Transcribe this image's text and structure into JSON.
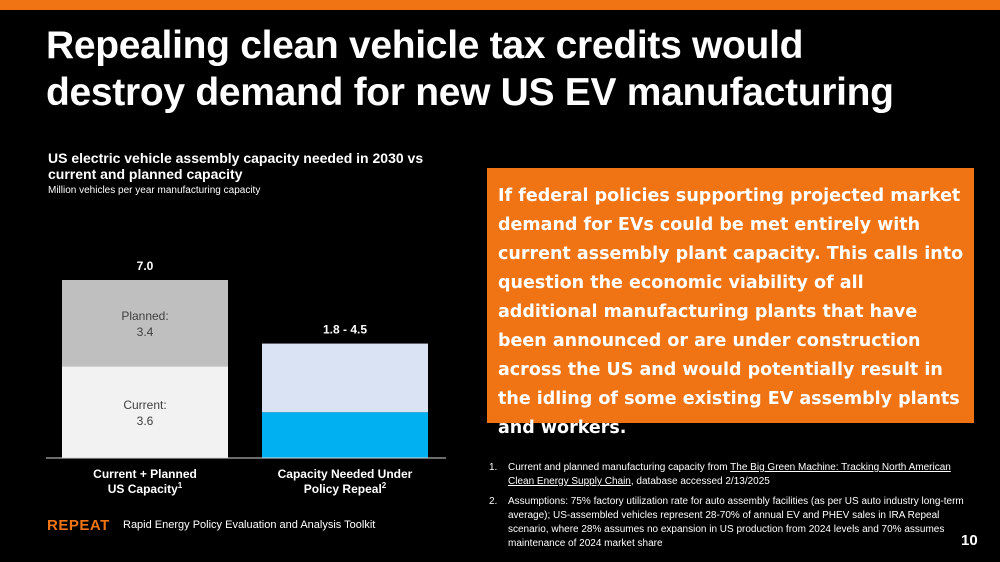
{
  "title": "Repealing clean vehicle tax credits would destroy demand for new US EV manufacturing",
  "chart_data": {
    "type": "bar",
    "stacked": true,
    "title": "US electric vehicle assembly capacity needed in 2030 vs current and planned capacity",
    "subtitle": "Million vehicles per year manufacturing capacity",
    "categories": [
      {
        "name": "Current + Planned US Capacity",
        "line1": "Current + Planned",
        "line2": "US Capacity",
        "footnote": "1"
      },
      {
        "name": "Capacity Needed Under Policy Repeal",
        "line1": "Capacity Needed Under",
        "line2": "Policy Repeal",
        "footnote": "2"
      }
    ],
    "series": [
      {
        "name": "Current",
        "values": [
          3.6,
          1.8
        ],
        "colors": [
          "#f2f2f2",
          "#00b0f0"
        ]
      },
      {
        "name": "Planned",
        "values": [
          3.4,
          2.7
        ],
        "colors": [
          "#bfbfbf",
          "#dae3f3"
        ]
      }
    ],
    "segment_labels": [
      {
        "bar": 0,
        "series": 0,
        "label": "Current:",
        "value": "3.6"
      },
      {
        "bar": 0,
        "series": 1,
        "label": "Planned:",
        "value": "3.4"
      }
    ],
    "total_labels": [
      "7.0",
      "1.8 - 4.5"
    ],
    "totals": [
      7.0,
      4.5
    ],
    "ylim": [
      0,
      7.0
    ],
    "label_color": "#404040",
    "axis_color": "#d9d9d9"
  },
  "callout": "If federal policies supporting projected market demand for EVs could be met entirely with current assembly plant capacity. This calls into question the economic viability of all additional manufacturing plants that have been announced or are under construction across the US and would potentially result in the idling of some existing EV assembly plants and workers.",
  "notes": [
    {
      "num": "1.",
      "pre": "Current and planned manufacturing capacity from ",
      "link": "The Big Green Machine: Tracking North American Clean Energy Supply Chain",
      "post": ", database accessed 2/13/2025"
    },
    {
      "num": "2.",
      "pre": "Assumptions: 75% factory utilization rate for auto assembly facilities (as per US auto industry long-term average); US-assembled vehicles represent 28-70% of annual EV and PHEV sales in IRA Repeal scenario, where 28% assumes no expansion in US production from 2024 levels and 70% assumes maintenance of 2024 market share",
      "link": "",
      "post": ""
    }
  ],
  "footer": {
    "brand": "REPEAT",
    "description": "Rapid Energy Policy Evaluation and Analysis Toolkit",
    "page_number": "10"
  },
  "colors": {
    "accent": "#f07314",
    "background": "#000000"
  }
}
